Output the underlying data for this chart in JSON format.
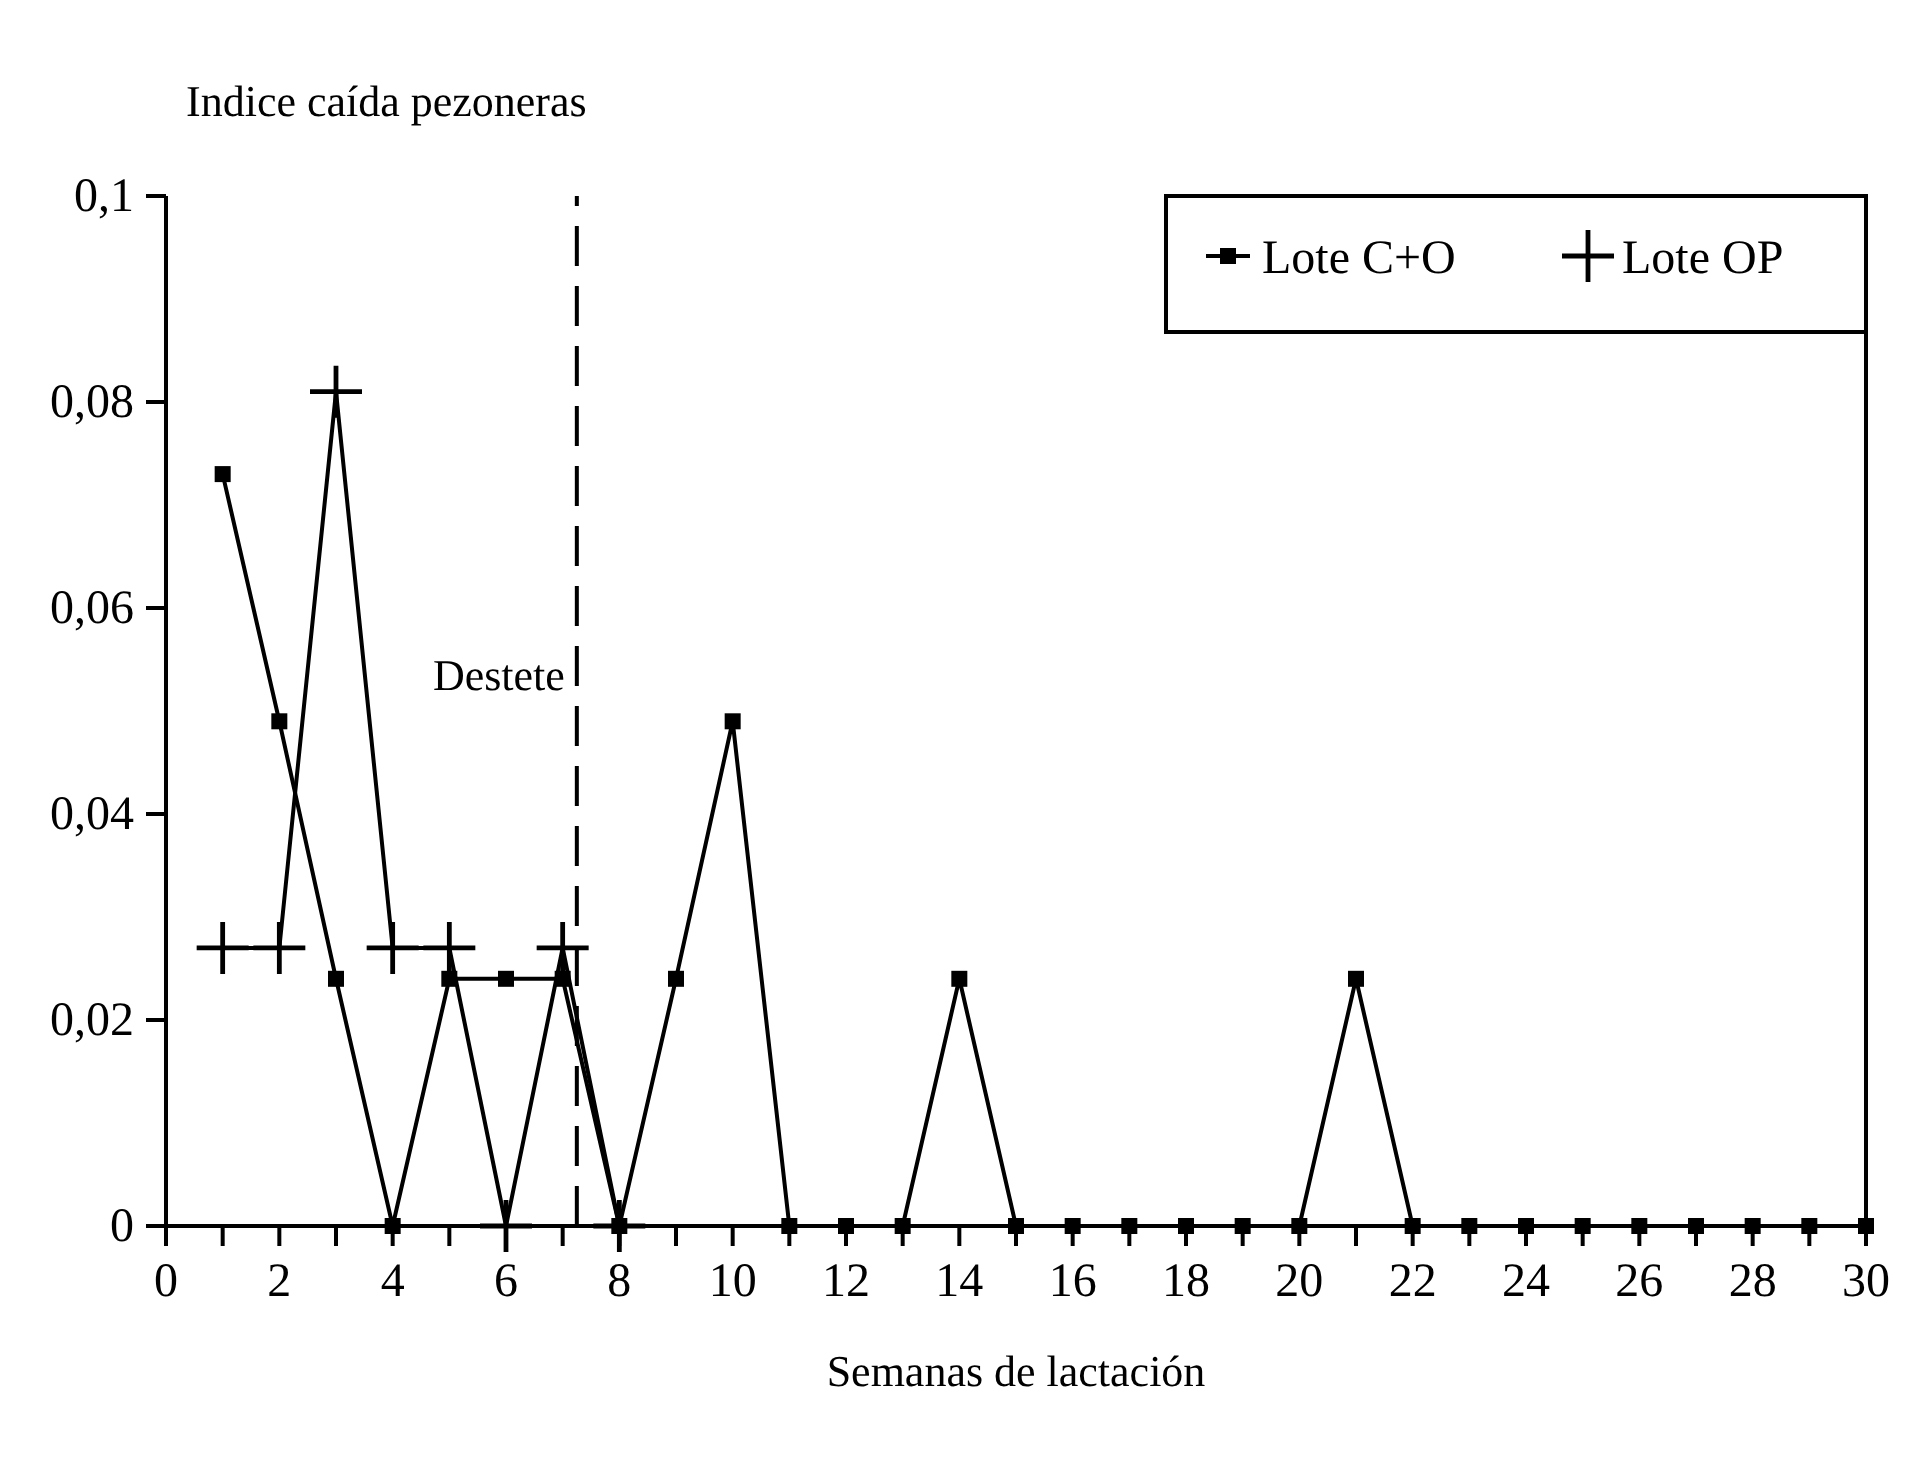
{
  "chart_data": {
    "type": "line",
    "ylabel": "Indice caída pezoneras",
    "xlabel": "Semanas de lactación",
    "xlim": [
      0,
      30
    ],
    "xticks": [
      0,
      {
        "value": 1,
        "label": null
      },
      2,
      {
        "value": 3,
        "label": null
      },
      4,
      {
        "value": 5,
        "label": null
      },
      6,
      {
        "value": 7,
        "label": null
      },
      8,
      {
        "value": 9,
        "label": null
      },
      10,
      {
        "value": 11,
        "label": null
      },
      12,
      {
        "value": 13,
        "label": null
      },
      14,
      {
        "value": 15,
        "label": null
      },
      16,
      {
        "value": 17,
        "label": null
      },
      18,
      {
        "value": 19,
        "label": null
      },
      20,
      {
        "value": 21,
        "label": null
      },
      22,
      {
        "value": 23,
        "label": null
      },
      24,
      {
        "value": 25,
        "label": null
      },
      26,
      {
        "value": 27,
        "label": null
      },
      28,
      {
        "value": 29,
        "label": null
      },
      30
    ],
    "ylim": [
      0,
      0.1
    ],
    "yticks": [
      0,
      {
        "value": 0.02,
        "label": "0,02"
      },
      {
        "value": 0.04,
        "label": "0,04"
      },
      {
        "value": 0.06,
        "label": "0,06"
      },
      {
        "value": 0.08,
        "label": "0,08"
      },
      {
        "value": 0.1,
        "label": "0,1"
      }
    ],
    "grid": false,
    "legend": "top right",
    "line_style": "solid",
    "ref_lines": [
      {
        "axis": "x",
        "value": 7.25,
        "label": "Destete",
        "line_style": "dashed"
      }
    ],
    "series": [
      {
        "name": "Lote C+O",
        "color": "#000000",
        "marker": "square",
        "x": [
          1,
          2,
          3,
          4,
          5,
          6,
          7,
          8,
          9,
          10,
          11,
          12,
          13,
          14,
          15,
          16,
          17,
          18,
          19,
          20,
          21,
          22,
          23,
          24,
          25,
          26,
          27,
          28,
          29,
          30
        ],
        "values": [
          0.073,
          0.049,
          0.024,
          0,
          0.024,
          0.024,
          0.024,
          0,
          0.024,
          0.049,
          0,
          0,
          0,
          0.024,
          0,
          0,
          0,
          0,
          0,
          0,
          0.024,
          0,
          0,
          0,
          0,
          0,
          0,
          0,
          0,
          0
        ]
      },
      {
        "name": "Lote OP",
        "color": "#000000",
        "marker": "cross",
        "x": [
          1,
          2,
          3,
          4,
          5,
          6,
          7,
          8
        ],
        "values": [
          0.027,
          0.027,
          0.081,
          0.027,
          0.027,
          0,
          0.027,
          0
        ]
      }
    ]
  }
}
